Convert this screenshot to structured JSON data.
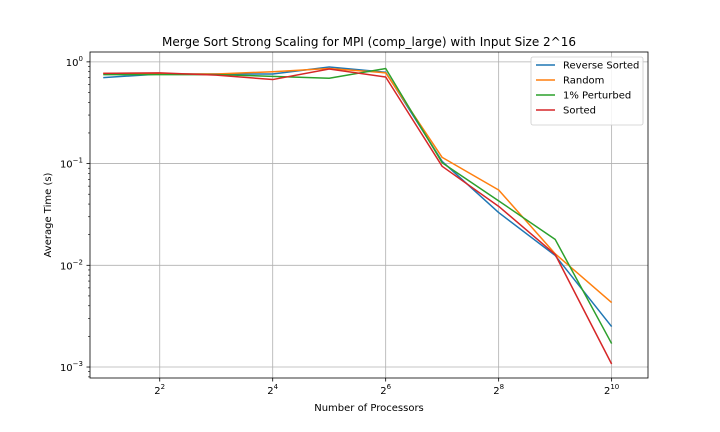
{
  "chart_data": {
    "type": "line",
    "title": "Merge Sort Strong Scaling for MPI (comp_large) with Input Size 2^16",
    "xlabel": "Number of Processors",
    "ylabel": "Average Time (s)",
    "xscale": "log2",
    "yscale": "log10",
    "xlim": [
      1.7,
      1600
    ],
    "ylim": [
      0.00078,
      1.25
    ],
    "grid": true,
    "legend_position": "top-right",
    "x_ticks": [
      {
        "base": "2",
        "exp": "2",
        "value": 4
      },
      {
        "base": "2",
        "exp": "4",
        "value": 16
      },
      {
        "base": "2",
        "exp": "6",
        "value": 64
      },
      {
        "base": "2",
        "exp": "8",
        "value": 256
      },
      {
        "base": "2",
        "exp": "10",
        "value": 1024
      }
    ],
    "y_ticks": [
      {
        "base": "10",
        "exp": "0",
        "value": 1
      },
      {
        "base": "10",
        "exp": "−1",
        "value": 0.1
      },
      {
        "base": "10",
        "exp": "−2",
        "value": 0.01
      },
      {
        "base": "10",
        "exp": "−3",
        "value": 0.001
      }
    ],
    "x": [
      2,
      4,
      8,
      16,
      32,
      64,
      128,
      256,
      512,
      1024
    ],
    "series": [
      {
        "name": "Reverse Sorted",
        "color": "#1f77b4",
        "values": [
          0.7,
          0.76,
          0.76,
          0.76,
          0.89,
          0.79,
          0.105,
          0.033,
          0.0125,
          0.0025
        ]
      },
      {
        "name": "Random",
        "color": "#ff7f0e",
        "values": [
          0.77,
          0.76,
          0.76,
          0.8,
          0.86,
          0.78,
          0.115,
          0.055,
          0.013,
          0.0043
        ]
      },
      {
        "name": "1% Perturbed",
        "color": "#2ca02c",
        "values": [
          0.75,
          0.75,
          0.75,
          0.72,
          0.69,
          0.86,
          0.102,
          0.043,
          0.018,
          0.0017
        ]
      },
      {
        "name": "Sorted",
        "color": "#d62728",
        "values": [
          0.77,
          0.78,
          0.74,
          0.67,
          0.85,
          0.71,
          0.094,
          0.038,
          0.0128,
          0.00107
        ]
      }
    ]
  }
}
